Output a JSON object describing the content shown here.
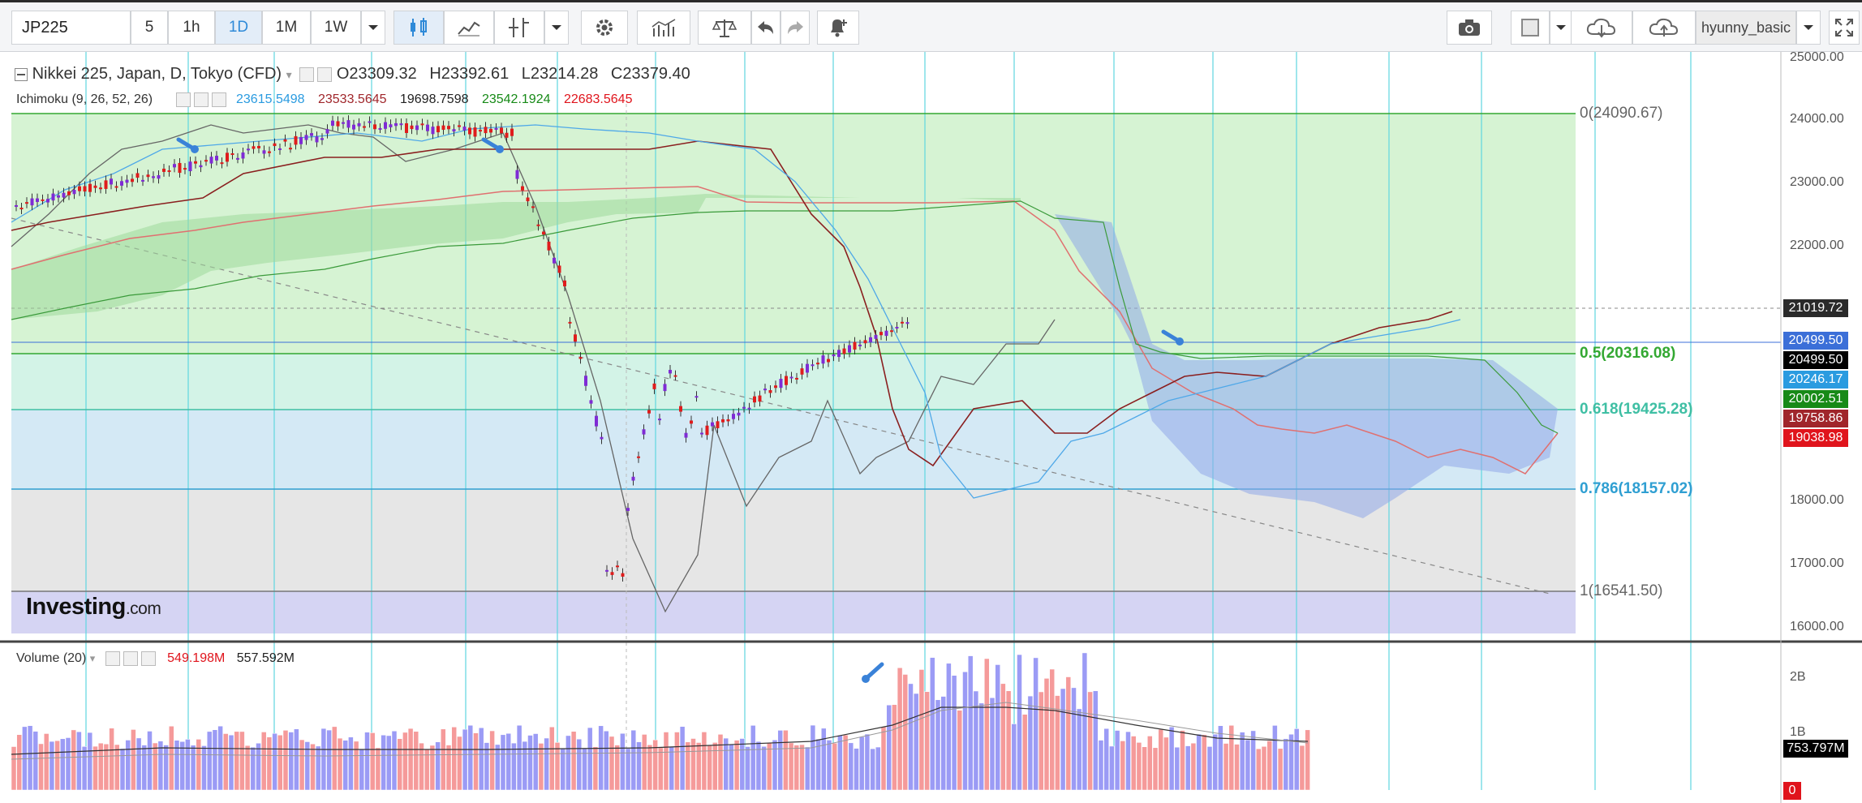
{
  "toolbar": {
    "symbol": "JP225",
    "intervals": [
      "5",
      "1h",
      "1D",
      "1M",
      "1W"
    ],
    "active_interval": "1D",
    "user": "hyunny_basic"
  },
  "chart": {
    "title": "Nikkei 225, Japan, D, Tokyo (CFD)",
    "open": "O23309.32",
    "high": "H23392.61",
    "low": "L23214.28",
    "close": "C23379.40",
    "ichimoku_label": "Ichimoku (9, 26, 52, 26)",
    "ichimoku_values": [
      "23615.5498",
      "23533.5645",
      "19698.7598",
      "23542.1924",
      "22683.5645"
    ],
    "volume_label": "Volume (20)",
    "volume_values": [
      "549.198M",
      "557.592M"
    ],
    "logo_text": "Investing",
    "logo_suffix": ".com"
  },
  "fib_levels": [
    "0(24090.67)",
    "0.5(20316.08)",
    "0.618(19425.28)",
    "0.786(18157.02)",
    "1(16541.50)"
  ],
  "price_axis": [
    "25000.00",
    "24000.00",
    "23000.00",
    "22000.00",
    "18000.00",
    "17000.00",
    "16000.00"
  ],
  "price_labels": [
    {
      "text": "21019.72",
      "color": "#2a2a2a"
    },
    {
      "text": "20499.50",
      "color": "#3b6fd8"
    },
    {
      "text": "20499.50",
      "color": "#000000"
    },
    {
      "text": "20246.17",
      "color": "#2a9be0"
    },
    {
      "text": "20002.51",
      "color": "#178a17"
    },
    {
      "text": "19758.86",
      "color": "#a0262b"
    },
    {
      "text": "19038.98",
      "color": "#e0141c"
    }
  ],
  "volume_axis": [
    "2B",
    "1B"
  ],
  "volume_labels": [
    {
      "text": "753.797M",
      "color": "#000000"
    },
    {
      "text": "0",
      "color": "#e0141c"
    }
  ],
  "colors": {
    "fib_green": "#33a832",
    "fib_teal": "#3fbfa4",
    "fib_blue": "#2f9fd2",
    "fib_gray": "#666666",
    "bull": "#7f2bd5",
    "bear": "#e01c1c"
  }
}
